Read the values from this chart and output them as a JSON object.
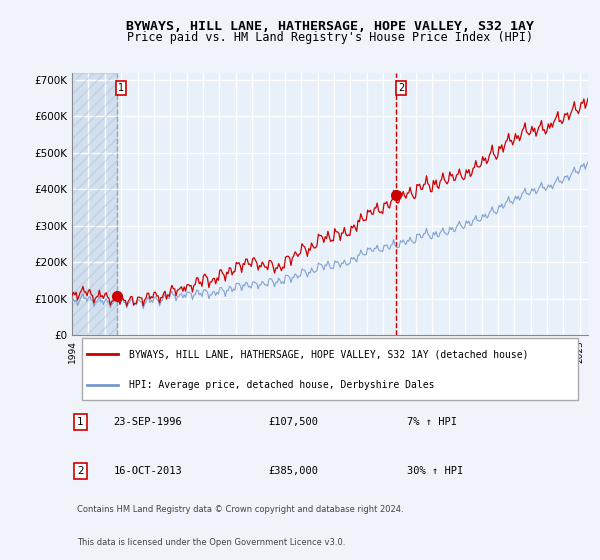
{
  "title1": "BYWAYS, HILL LANE, HATHERSAGE, HOPE VALLEY, S32 1AY",
  "title2": "Price paid vs. HM Land Registry's House Price Index (HPI)",
  "red_label": "BYWAYS, HILL LANE, HATHERSAGE, HOPE VALLEY, S32 1AY (detached house)",
  "blue_label": "HPI: Average price, detached house, Derbyshire Dales",
  "sale1_date": "23-SEP-1996",
  "sale1_price": 107500,
  "sale1_hpi": "7% ↑ HPI",
  "sale1_year": 1996.73,
  "sale2_date": "16-OCT-2013",
  "sale2_price": 385000,
  "sale2_hpi": "30% ↑ HPI",
  "sale2_year": 2013.79,
  "note1": "Contains HM Land Registry data © Crown copyright and database right 2024.",
  "note2": "This data is licensed under the Open Government Licence v3.0.",
  "xmin": 1994.0,
  "xmax": 2025.5,
  "ymin": 0,
  "ymax": 720000,
  "bg_color": "#dce9f5",
  "plot_bg": "#e8f0fa",
  "hatch_color": "#c0cfe0",
  "grid_color": "#ffffff",
  "red_color": "#cc0000",
  "blue_color": "#7799cc",
  "vline1_color": "#999999",
  "vline2_color": "#cc0000"
}
